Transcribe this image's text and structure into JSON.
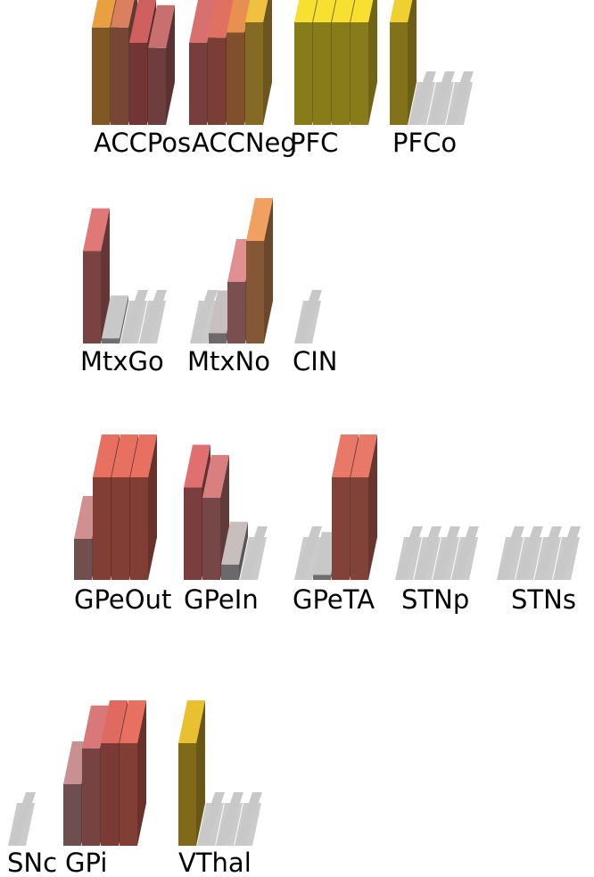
{
  "layers": [
    {
      "label": "ACCPos",
      "units": [
        {
          "act": 0.95,
          "color": "#e8a040"
        },
        {
          "act": 0.95,
          "color": "#d88060"
        },
        {
          "act": 0.8,
          "color": "#d06060"
        },
        {
          "act": 0.75,
          "color": "#c87070"
        }
      ]
    },
    {
      "label": "ACCNeg",
      "units": [
        {
          "act": 0.8,
          "color": "#d87070"
        },
        {
          "act": 0.85,
          "color": "#e07060"
        },
        {
          "act": 0.9,
          "color": "#e89050"
        },
        {
          "act": 1.0,
          "color": "#f0c040"
        }
      ]
    },
    {
      "label": "PFC",
      "units": [
        {
          "act": 1.0,
          "color": "#f8e030"
        },
        {
          "act": 1.0,
          "color": "#f8e030"
        },
        {
          "act": 1.0,
          "color": "#f8e030"
        },
        {
          "act": 1.0,
          "color": "#f8e030"
        }
      ]
    },
    {
      "label": "PFCo",
      "units": [
        {
          "act": 1.0,
          "color": "#f0d030"
        },
        {
          "act": 0.0,
          "color": "#c8c8c8"
        },
        {
          "act": 0.0,
          "color": "#c8c8c8"
        },
        {
          "act": 0.0,
          "color": "#c8c8c8"
        }
      ]
    },
    {
      "label": "MtxGo",
      "units": [
        {
          "act": 0.9,
          "color": "#e07878"
        },
        {
          "act": 0.05,
          "color": "#c8c8c8"
        },
        {
          "act": 0.0,
          "color": "#c8c8c8"
        },
        {
          "act": 0.0,
          "color": "#c8c8c8"
        }
      ]
    },
    {
      "label": "MtxNo",
      "units": [
        {
          "act": 0.0,
          "color": "#c8c8c8"
        },
        {
          "act": 0.1,
          "color": "#c8c0c0"
        },
        {
          "act": 0.6,
          "color": "#e09090"
        },
        {
          "act": 1.0,
          "color": "#f0a060"
        }
      ]
    },
    {
      "label": "CIN",
      "units": [
        {
          "act": 0.0,
          "color": "#c8c8c8"
        }
      ]
    },
    {
      "label": "GPeOut",
      "units": [
        {
          "act": 0.4,
          "color": "#d09090"
        },
        {
          "act": 1.0,
          "color": "#e87060"
        },
        {
          "act": 1.0,
          "color": "#e87060"
        },
        {
          "act": 1.0,
          "color": "#e87060"
        }
      ]
    },
    {
      "label": "GPeIn",
      "units": [
        {
          "act": 0.9,
          "color": "#e07070"
        },
        {
          "act": 0.8,
          "color": "#d88080"
        },
        {
          "act": 0.15,
          "color": "#c8bebe"
        },
        {
          "act": 0.0,
          "color": "#c8c8c8"
        }
      ]
    },
    {
      "label": "GPeTA",
      "units": [
        {
          "act": 0.0,
          "color": "#c8c8c8"
        },
        {
          "act": 0.05,
          "color": "#c8c8c8"
        },
        {
          "act": 1.0,
          "color": "#e87868"
        },
        {
          "act": 1.0,
          "color": "#e87868"
        }
      ]
    },
    {
      "label": "STNp",
      "units": [
        {
          "act": 0.0,
          "color": "#c8c8c8"
        },
        {
          "act": 0.0,
          "color": "#c8c8c8"
        },
        {
          "act": 0.0,
          "color": "#c8c8c8"
        },
        {
          "act": 0.0,
          "color": "#c8c8c8"
        }
      ]
    },
    {
      "label": "STNs",
      "units": [
        {
          "act": 0.0,
          "color": "#c8c8c8"
        },
        {
          "act": 0.0,
          "color": "#c8c8c8"
        },
        {
          "act": 0.0,
          "color": "#c8c8c8"
        },
        {
          "act": 0.0,
          "color": "#c8c8c8"
        }
      ]
    },
    {
      "label": "SNc",
      "units": [
        {
          "act": 0.0,
          "color": "#c8c8c8"
        }
      ]
    },
    {
      "label": "GPi",
      "units": [
        {
          "act": 0.6,
          "color": "#c89090"
        },
        {
          "act": 0.95,
          "color": "#d87878"
        },
        {
          "act": 1.0,
          "color": "#e06a60"
        },
        {
          "act": 1.0,
          "color": "#e87060"
        }
      ]
    },
    {
      "label": "VThal",
      "units": [
        {
          "act": 1.0,
          "color": "#e8c030"
        },
        {
          "act": 0.0,
          "color": "#c8c8c8"
        },
        {
          "act": 0.0,
          "color": "#c8c8c8"
        },
        {
          "act": 0.0,
          "color": "#c8c8c8"
        }
      ]
    }
  ]
}
